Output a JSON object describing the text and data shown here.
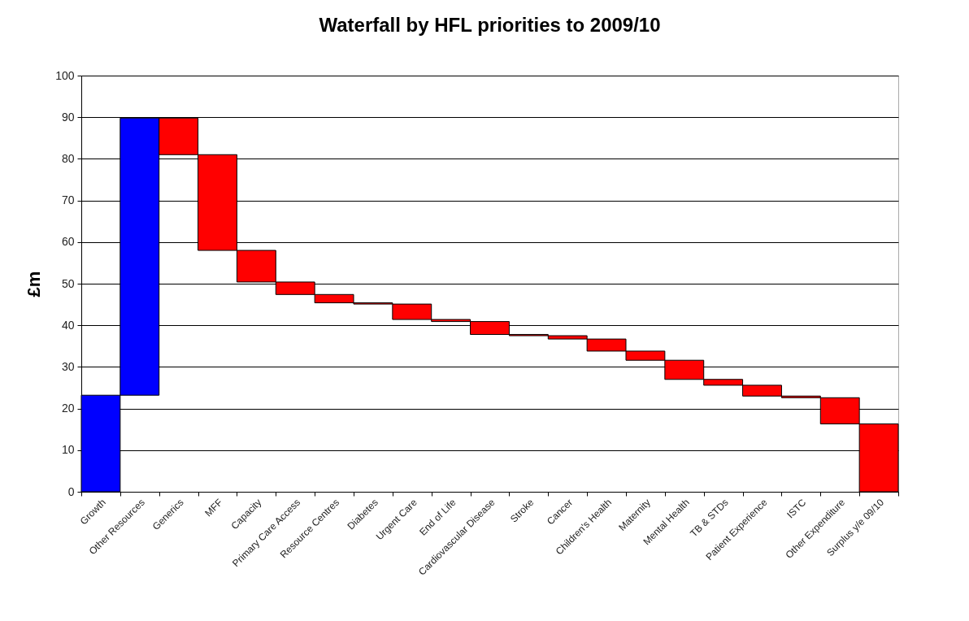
{
  "chart_data": {
    "type": "bar",
    "title": "Waterfall by HFL priorities to 2009/10",
    "ylabel": "£m",
    "categories": [
      "Growth",
      "Other Resources",
      "Generics",
      "MFF",
      "Capacity",
      "Primary Care Access",
      "Resource Centres",
      "Diabetes",
      "Urgent Care",
      "End of Life",
      "Cardiovascular Disease",
      "Stroke",
      "Cancer",
      "Children's Health",
      "Maternity",
      "Mental Health",
      "TB & STDs",
      "Patient Experience",
      "ISTC",
      "Other Expenditure",
      "Surplus y/e 09/10"
    ],
    "base": [
      0,
      23.2,
      89.8,
      81.0,
      58.0,
      50.4,
      47.4,
      45.4,
      45.1,
      41.4,
      40.9,
      37.8,
      37.5,
      36.7,
      33.8,
      31.6,
      27.0,
      25.6,
      23.0,
      22.6,
      0
    ],
    "values": [
      23.2,
      66.6,
      -8.8,
      -23.0,
      -7.6,
      -3.0,
      -2.0,
      -0.3,
      -3.7,
      -0.5,
      -3.1,
      -0.3,
      -0.8,
      -2.9,
      -2.2,
      -4.6,
      -1.4,
      -2.6,
      -0.4,
      -6.3,
      16.3
    ],
    "colors": [
      "#0000ff",
      "#0000ff",
      "#ff0000",
      "#ff0000",
      "#ff0000",
      "#ff0000",
      "#ff0000",
      "#ff0000",
      "#ff0000",
      "#ff0000",
      "#ff0000",
      "#ff0000",
      "#ff0000",
      "#ff0000",
      "#ff0000",
      "#ff0000",
      "#ff0000",
      "#ff0000",
      "#ff0000",
      "#ff0000",
      "#ff0000"
    ],
    "ylim": [
      0,
      100
    ],
    "yticks": [
      0,
      10,
      20,
      30,
      40,
      50,
      60,
      70,
      80,
      90,
      100
    ],
    "grid": "y"
  }
}
